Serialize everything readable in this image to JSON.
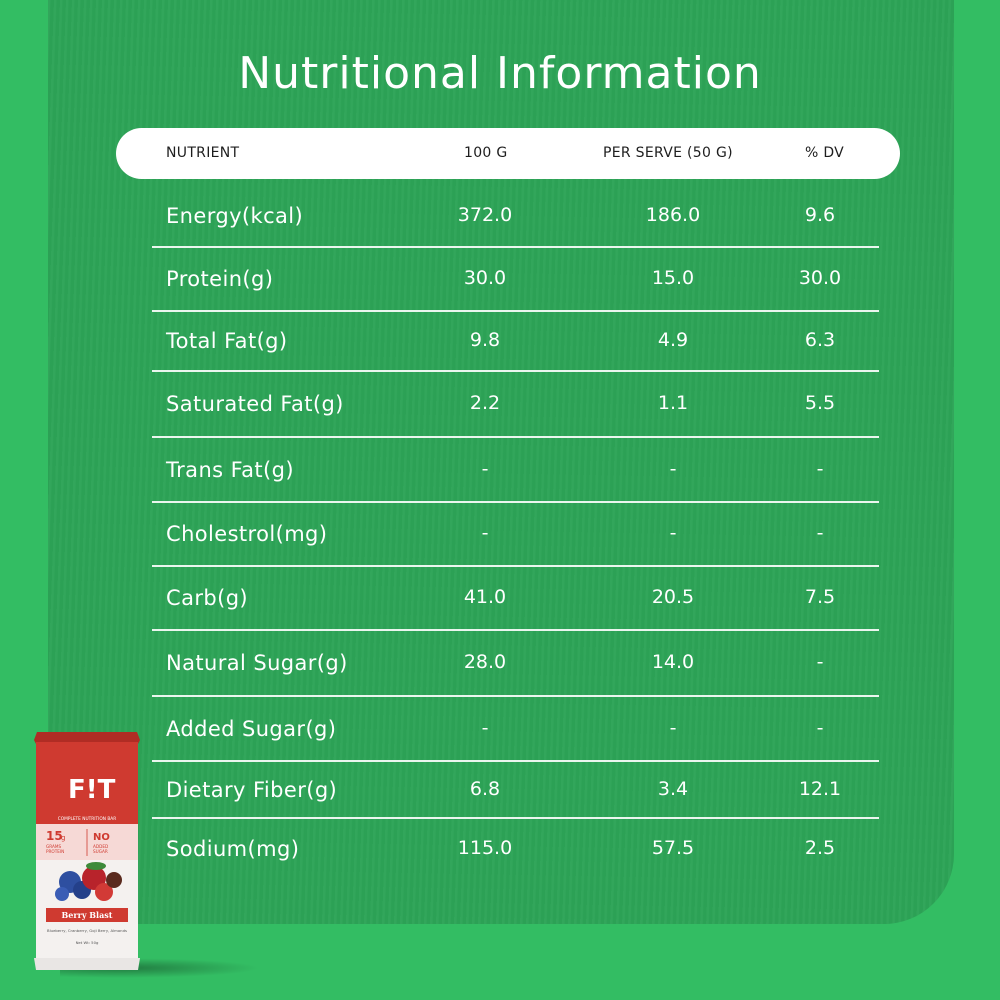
{
  "title": "Nutritional Information",
  "header": {
    "nutrient": "NUTRIENT",
    "per100": "100 G",
    "perServe": "PER SERVE (50 G)",
    "dv": "% DV"
  },
  "rows": [
    {
      "name": "Energy(kcal)",
      "per100": "372.0",
      "perServe": "186.0",
      "dv": "9.6"
    },
    {
      "name": "Protein(g)",
      "per100": "30.0",
      "perServe": "15.0",
      "dv": "30.0"
    },
    {
      "name": "Total Fat(g)",
      "per100": "9.8",
      "perServe": "4.9",
      "dv": "6.3"
    },
    {
      "name": "Saturated Fat(g)",
      "per100": "2.2",
      "perServe": "1.1",
      "dv": "5.5"
    },
    {
      "name": "Trans Fat(g)",
      "per100": "-",
      "perServe": "-",
      "dv": "-"
    },
    {
      "name": "Cholestrol(mg)",
      "per100": "-",
      "perServe": "-",
      "dv": "-"
    },
    {
      "name": "Carb(g)",
      "per100": "41.0",
      "perServe": "20.5",
      "dv": "7.5"
    },
    {
      "name": "Natural Sugar(g)",
      "per100": "28.0",
      "perServe": "14.0",
      "dv": "-"
    },
    {
      "name": "Added Sugar(g)",
      "per100": "-",
      "perServe": "-",
      "dv": "-"
    },
    {
      "name": "Dietary Fiber(g)",
      "per100": "6.8",
      "perServe": "3.4",
      "dv": "12.1"
    },
    {
      "name": "Sodium(mg)",
      "per100": "115.0",
      "perServe": "57.5",
      "dv": "2.5"
    }
  ],
  "product": {
    "brand": "F!T",
    "tagline": "COMPLETE NUTRITION BAR",
    "badge1_num": "15",
    "badge1_unit": "g",
    "badge1_text": "GRAMS PROTEIN",
    "badge2_big": "NO",
    "badge2_text": "ADDED SUGAR",
    "flavor": "Berry Blast",
    "ingredients": "Blueberry, Cranberry, Goji Berry, Almonds",
    "net_wt": "Net Wt: 50g"
  },
  "colors": {
    "background": "#33bd63",
    "panel": "#2da457",
    "wrapper_red": "#c8352c"
  }
}
